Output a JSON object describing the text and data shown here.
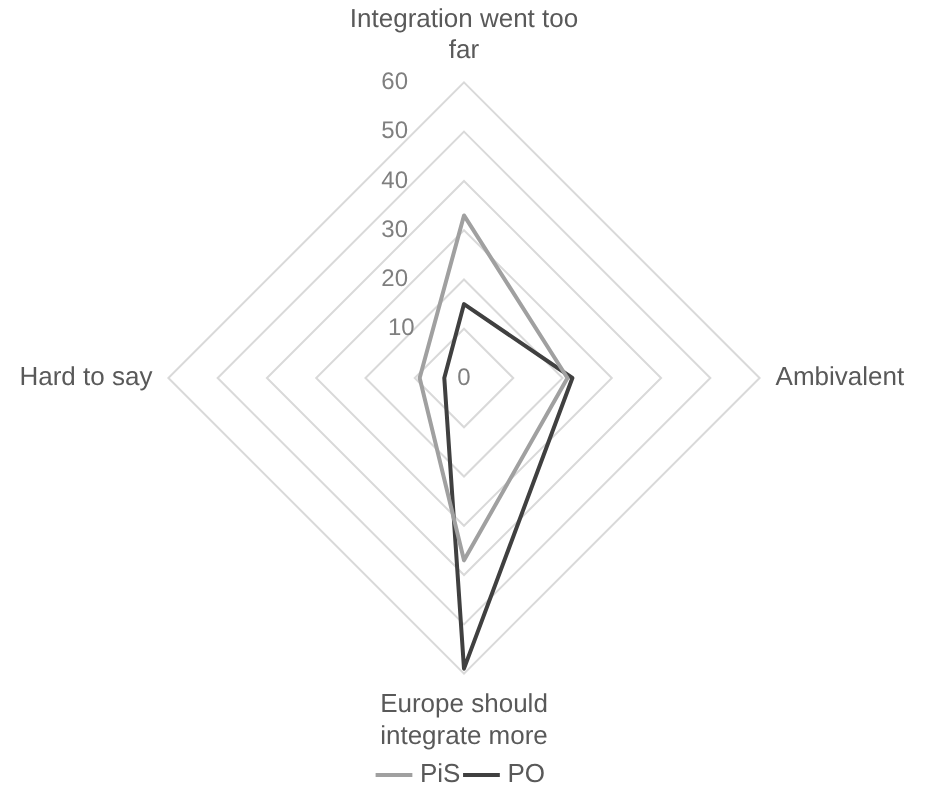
{
  "chart_data": {
    "type": "radar",
    "categories": [
      "Integration went too far",
      "Ambivalent",
      "Europe should integrate more",
      "Hard to say"
    ],
    "series": [
      {
        "name": "PiS",
        "color": "#a0a0a0",
        "values": [
          33,
          21,
          37,
          9
        ]
      },
      {
        "name": "PO",
        "color": "#404040",
        "values": [
          15,
          22,
          59,
          4
        ]
      }
    ],
    "ylim": [
      0,
      60
    ],
    "yticks": [
      0,
      10,
      20,
      30,
      40,
      50,
      60
    ],
    "grid": true,
    "legend": "bottom",
    "marker": "none"
  }
}
